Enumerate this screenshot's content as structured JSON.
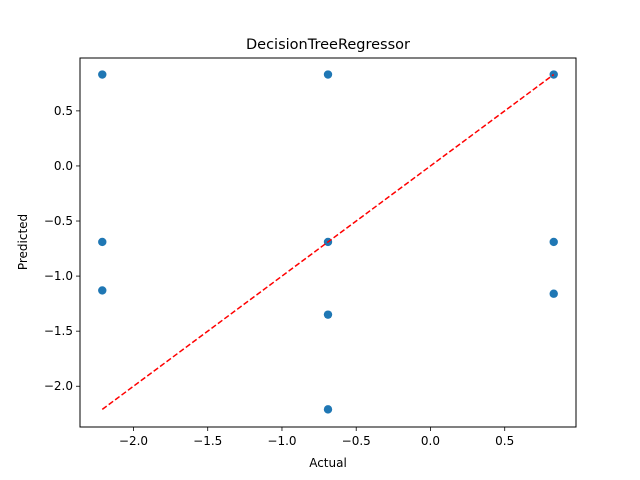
{
  "chart_data": {
    "type": "scatter",
    "title": "DecisionTreeRegressor",
    "xlabel": "Actual",
    "ylabel": "Predicted",
    "xlim": [
      -2.36,
      0.98
    ],
    "ylim": [
      -2.37,
      0.98
    ],
    "xticks": [
      -2.0,
      -1.5,
      -1.0,
      -0.5,
      0.0,
      0.5
    ],
    "xtick_labels": [
      "−2.0",
      "−1.5",
      "−1.0",
      "−0.5",
      "0.0",
      "0.5"
    ],
    "yticks": [
      -2.0,
      -1.5,
      -1.0,
      -0.5,
      0.0,
      0.5
    ],
    "ytick_labels": [
      "−2.0",
      "−1.5",
      "−1.0",
      "−0.5",
      "0.0",
      "0.5"
    ],
    "grid": false,
    "point_color": "#1f77b4",
    "reference_line": {
      "x": [
        -2.21,
        0.83
      ],
      "y": [
        -2.21,
        0.83
      ],
      "color": "#ff0000",
      "style": "dashed"
    },
    "points": [
      {
        "x": -2.21,
        "y": 0.83
      },
      {
        "x": -2.21,
        "y": -0.69
      },
      {
        "x": -2.21,
        "y": -1.13
      },
      {
        "x": -0.69,
        "y": 0.83
      },
      {
        "x": -0.69,
        "y": -0.69
      },
      {
        "x": -0.69,
        "y": -1.35
      },
      {
        "x": -0.69,
        "y": -2.21
      },
      {
        "x": 0.83,
        "y": 0.83
      },
      {
        "x": 0.83,
        "y": -0.69
      },
      {
        "x": 0.83,
        "y": -1.16
      }
    ]
  }
}
